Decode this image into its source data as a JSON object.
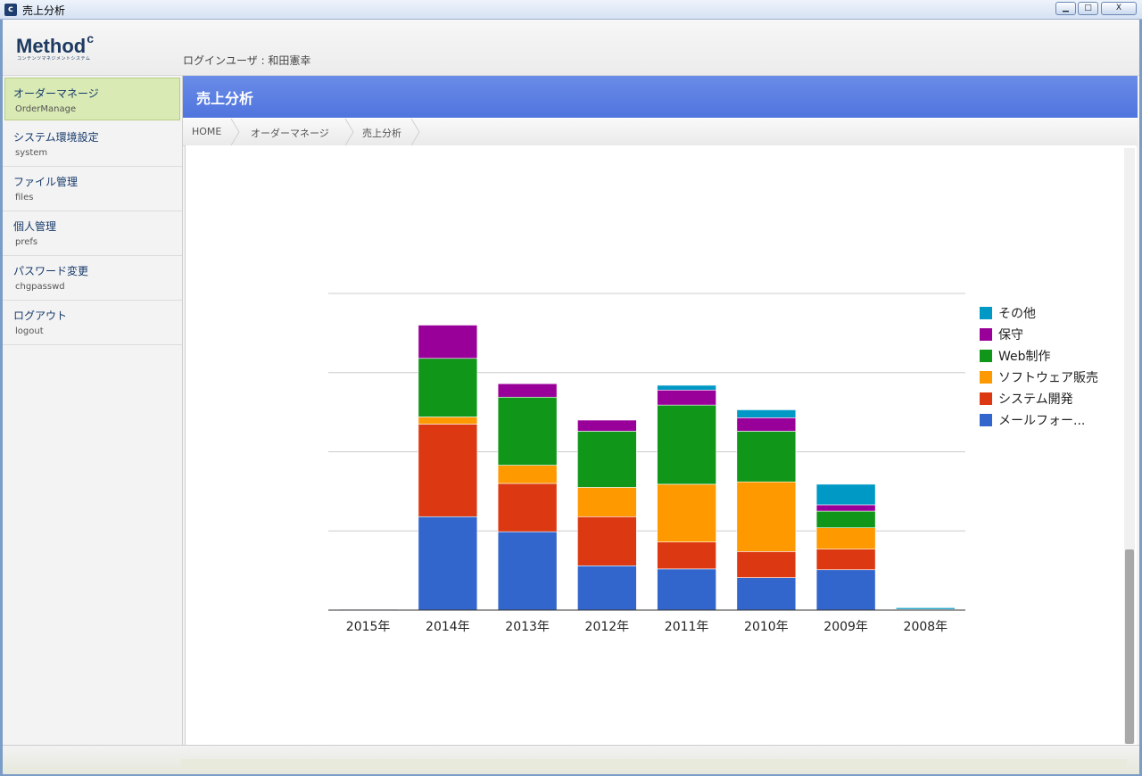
{
  "window": {
    "title": "売上分析",
    "icon_letter": "c",
    "buttons": {
      "minimize": "▁",
      "maximize": "□",
      "close": "X"
    }
  },
  "header": {
    "logo": "Method",
    "logo_mark": "c",
    "logo_sub": "コンテンツマネジメントシステム",
    "login_label": "ログインユーザ : 和田憲幸"
  },
  "sidebar": {
    "items": [
      {
        "ja": "オーダーマネージ",
        "en": "OrderManage"
      },
      {
        "ja": "システム環境設定",
        "en": "system"
      },
      {
        "ja": "ファイル管理",
        "en": "files"
      },
      {
        "ja": "個人管理",
        "en": "prefs"
      },
      {
        "ja": "パスワード変更",
        "en": "chgpasswd"
      },
      {
        "ja": "ログアウト",
        "en": "logout"
      }
    ]
  },
  "page": {
    "title": "売上分析",
    "breadcrumb": [
      "HOME",
      "オーダーマネージ",
      "売上分析"
    ]
  },
  "colors": {
    "header_blue": "#5a7fe2",
    "active_nav": "#d9eab4"
  },
  "chart_data": {
    "type": "bar",
    "stacked": true,
    "categories": [
      "2015年",
      "2014年",
      "2013年",
      "2012年",
      "2011年",
      "2010年",
      "2009年",
      "2008年"
    ],
    "ylim": [
      0,
      4
    ],
    "grid": true,
    "legend_position": "right",
    "series": [
      {
        "name": "メールフォー...",
        "color": "#3366cc",
        "values": [
          0.01,
          1.18,
          0.99,
          0.56,
          0.52,
          0.41,
          0.51,
          0.01
        ]
      },
      {
        "name": "システム開発",
        "color": "#dc3912",
        "values": [
          0,
          1.17,
          0.61,
          0.62,
          0.34,
          0.33,
          0.26,
          0
        ]
      },
      {
        "name": "ソフトウェア販売",
        "color": "#ff9900",
        "values": [
          0,
          0.09,
          0.23,
          0.37,
          0.73,
          0.88,
          0.27,
          0
        ]
      },
      {
        "name": "Web制作",
        "color": "#109618",
        "values": [
          0,
          0.74,
          0.86,
          0.71,
          1.0,
          0.64,
          0.21,
          0
        ]
      },
      {
        "name": "保守",
        "color": "#990099",
        "values": [
          0,
          0.42,
          0.17,
          0.14,
          0.19,
          0.17,
          0.08,
          0
        ]
      },
      {
        "name": "その他",
        "color": "#0099c6",
        "values": [
          0,
          0,
          0,
          0,
          0.06,
          0.1,
          0.26,
          0.02
        ]
      }
    ]
  }
}
